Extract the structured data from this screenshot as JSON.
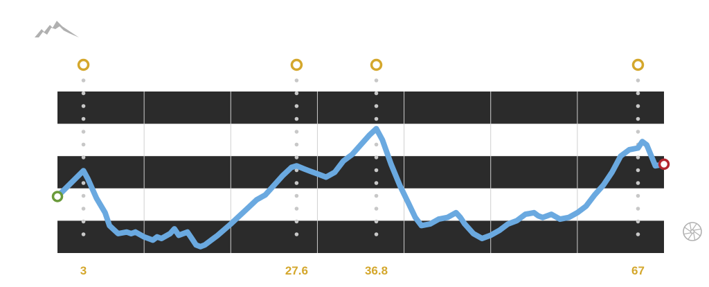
{
  "colors": {
    "band_dark": "#2b2b2b",
    "band_light": "#ffffff",
    "grid": "#cfcfcf",
    "line": "#6aa9e0",
    "marker": "#d4a72c",
    "label": "#d4a72c",
    "dots": "#c8c8c8",
    "start": "#6a9a3a",
    "end": "#b3262e",
    "icon": "#b0b0b0"
  },
  "icons": {
    "top_left": "mountain-icon",
    "bottom_right": "bike-wheel-icon"
  },
  "chart_data": {
    "type": "line",
    "title": "",
    "xlabel": "",
    "ylabel": "",
    "xlim": [
      0,
      70
    ],
    "ylim": [
      0,
      100
    ],
    "grid": true,
    "banded_background": true,
    "markers": [
      {
        "x": 3,
        "label": "3"
      },
      {
        "x": 27.6,
        "label": "27.6"
      },
      {
        "x": 36.8,
        "label": "36.8"
      },
      {
        "x": 67,
        "label": "67"
      }
    ],
    "series": [
      {
        "points": [
          [
            0,
            35
          ],
          [
            3,
            51
          ],
          [
            3.5,
            46
          ],
          [
            4.5,
            34
          ],
          [
            5.5,
            25
          ],
          [
            6,
            17
          ],
          [
            7,
            12
          ],
          [
            8,
            13
          ],
          [
            8.5,
            12
          ],
          [
            9,
            13
          ],
          [
            10,
            10
          ],
          [
            10.5,
            9
          ],
          [
            11,
            8
          ],
          [
            11.5,
            10
          ],
          [
            12,
            9
          ],
          [
            13,
            12
          ],
          [
            13.5,
            15
          ],
          [
            14,
            11
          ],
          [
            15,
            13
          ],
          [
            15.5,
            9
          ],
          [
            16,
            5
          ],
          [
            16.5,
            4
          ],
          [
            17,
            5
          ],
          [
            18,
            9
          ],
          [
            18.5,
            11
          ],
          [
            20,
            18
          ],
          [
            21,
            23
          ],
          [
            22,
            28
          ],
          [
            23,
            33
          ],
          [
            24,
            36
          ],
          [
            25,
            42
          ],
          [
            26,
            48
          ],
          [
            27,
            53
          ],
          [
            27.6,
            54
          ],
          [
            28.5,
            52
          ],
          [
            29,
            51
          ],
          [
            29.5,
            50
          ],
          [
            30,
            49
          ],
          [
            31,
            47
          ],
          [
            32,
            50
          ],
          [
            33,
            57
          ],
          [
            34,
            61
          ],
          [
            35,
            67
          ],
          [
            36,
            73
          ],
          [
            36.8,
            77
          ],
          [
            37.5,
            70
          ],
          [
            38.5,
            55
          ],
          [
            39.5,
            42
          ],
          [
            40.5,
            31
          ],
          [
            41.3,
            22
          ],
          [
            42,
            17
          ],
          [
            43,
            18
          ],
          [
            44,
            21
          ],
          [
            45,
            22
          ],
          [
            46,
            25
          ],
          [
            46.5,
            22
          ],
          [
            47,
            18
          ],
          [
            48,
            12
          ],
          [
            49,
            9
          ],
          [
            50,
            11
          ],
          [
            51,
            14
          ],
          [
            52,
            18
          ],
          [
            53,
            20
          ],
          [
            54,
            24
          ],
          [
            55,
            25
          ],
          [
            55.5,
            23
          ],
          [
            56,
            22
          ],
          [
            57,
            24
          ],
          [
            58,
            21
          ],
          [
            59,
            22
          ],
          [
            60,
            25
          ],
          [
            61,
            29
          ],
          [
            62,
            36
          ],
          [
            63,
            42
          ],
          [
            64,
            50
          ],
          [
            65,
            60
          ],
          [
            66,
            64
          ],
          [
            67,
            65
          ],
          [
            67.5,
            69
          ],
          [
            68,
            67
          ],
          [
            69,
            54
          ],
          [
            70,
            55
          ]
        ]
      }
    ]
  }
}
